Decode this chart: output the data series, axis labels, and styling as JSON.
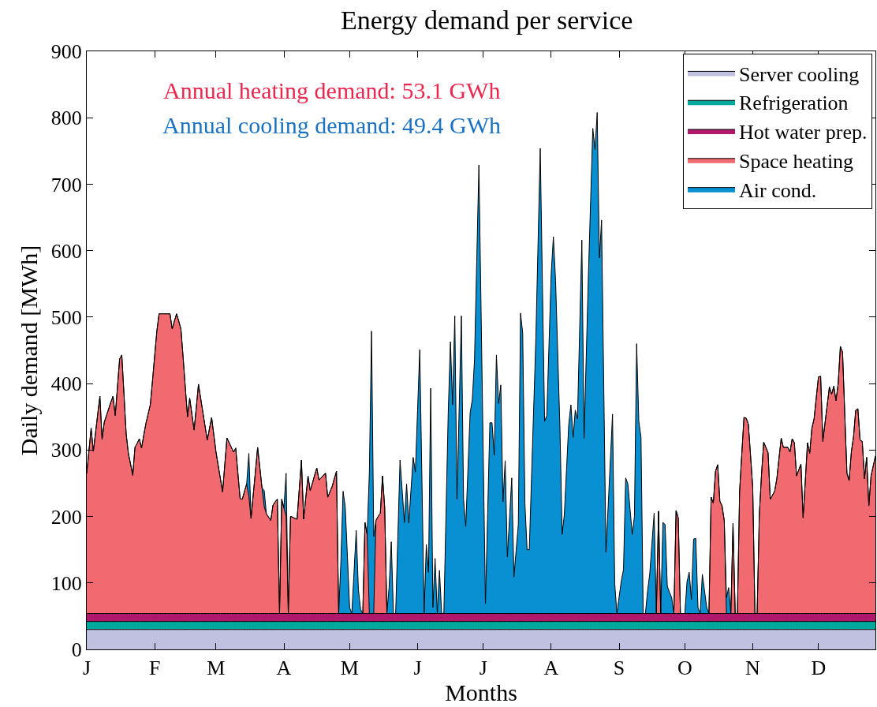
{
  "chart_data": {
    "type": "area",
    "title": "Energy demand per service",
    "xlabel": "Months",
    "ylabel": "Daily demand [MWh]",
    "annotations": [
      "Annual heating demand: 53.1 GWh",
      "Annual cooling demand: 49.4 GWh"
    ],
    "stacked": true,
    "legend": "top right",
    "ylim": [
      0,
      900
    ],
    "yticks": [
      0,
      100,
      200,
      300,
      400,
      500,
      600,
      700,
      800,
      900
    ],
    "categories": [
      "J",
      null,
      null,
      null,
      null,
      null,
      null,
      null,
      null,
      null,
      null,
      null,
      null,
      null,
      null,
      null,
      null,
      null,
      null,
      null,
      null,
      null,
      null,
      null,
      null,
      null,
      null,
      null,
      null,
      null,
      null,
      "F",
      null,
      null,
      null,
      null,
      null,
      null,
      null,
      null,
      null,
      null,
      null,
      null,
      null,
      null,
      null,
      null,
      null,
      null,
      null,
      null,
      null,
      null,
      null,
      null,
      null,
      null,
      null,
      "M",
      null,
      null,
      null,
      null,
      null,
      null,
      null,
      null,
      null,
      null,
      null,
      null,
      null,
      null,
      null,
      null,
      null,
      null,
      null,
      null,
      null,
      null,
      null,
      null,
      null,
      null,
      null,
      null,
      null,
      null,
      "A",
      null,
      null,
      null,
      null,
      null,
      null,
      null,
      null,
      null,
      null,
      null,
      null,
      null,
      null,
      null,
      null,
      null,
      null,
      null,
      null,
      null,
      null,
      null,
      null,
      null,
      null,
      null,
      null,
      null,
      "M",
      null,
      null,
      null,
      null,
      null,
      null,
      null,
      null,
      null,
      null,
      null,
      null,
      null,
      null,
      null,
      null,
      null,
      null,
      null,
      null,
      null,
      null,
      null,
      null,
      null,
      null,
      null,
      null,
      null,
      null,
      "J",
      null,
      null,
      null,
      null,
      null,
      null,
      null,
      null,
      null,
      null,
      null,
      null,
      null,
      null,
      null,
      null,
      null,
      null,
      null,
      null,
      null,
      null,
      null,
      null,
      null,
      null,
      null,
      null,
      null,
      "J",
      null,
      null,
      null,
      null,
      null,
      null,
      null,
      null,
      null,
      null,
      null,
      null,
      null,
      null,
      null,
      null,
      null,
      null,
      null,
      null,
      null,
      null,
      null,
      null,
      null,
      null,
      null,
      null,
      null,
      null,
      "A",
      null,
      null,
      null,
      null,
      null,
      null,
      null,
      null,
      null,
      null,
      null,
      null,
      null,
      null,
      null,
      null,
      null,
      null,
      null,
      null,
      null,
      null,
      null,
      null,
      null,
      null,
      null,
      null,
      null,
      null,
      "S",
      null,
      null,
      null,
      null,
      null,
      null,
      null,
      null,
      null,
      null,
      null,
      null,
      null,
      null,
      null,
      null,
      null,
      null,
      null,
      null,
      null,
      null,
      null,
      null,
      null,
      null,
      null,
      null,
      null,
      "O",
      null,
      null,
      null,
      null,
      null,
      null,
      null,
      null,
      null,
      null,
      null,
      null,
      null,
      null,
      null,
      null,
      null,
      null,
      null,
      null,
      null,
      null,
      null,
      null,
      null,
      null,
      null,
      null,
      null,
      null,
      "N",
      null,
      null,
      null,
      null,
      null,
      null,
      null,
      null,
      null,
      null,
      null,
      null,
      null,
      null,
      null,
      null,
      null,
      null,
      null,
      null,
      null,
      null,
      null,
      null,
      null,
      null,
      null,
      null,
      null,
      "D",
      null,
      null,
      null,
      null,
      null,
      null,
      null,
      null,
      null,
      null,
      null,
      null,
      null,
      null,
      null,
      null,
      null,
      null,
      null,
      null,
      null,
      null,
      null,
      null,
      null,
      null
    ],
    "series": [
      {
        "name": "Server cooling",
        "color": "#c0c0e0",
        "values": [
          30,
          30,
          30,
          30,
          30,
          30,
          30,
          30,
          30,
          30,
          30,
          30,
          30,
          30,
          30,
          30,
          30,
          30,
          30,
          30,
          30,
          30,
          30,
          30,
          30,
          30,
          30,
          30,
          30,
          30,
          30,
          30,
          30,
          30,
          30,
          30,
          30,
          30,
          30,
          30,
          30,
          30,
          30,
          30,
          30,
          30,
          30,
          30,
          30,
          30,
          30,
          30,
          30,
          30,
          30,
          30,
          30,
          30,
          30,
          30,
          30,
          30,
          30,
          30,
          30,
          30,
          30,
          30,
          30,
          30,
          30,
          30,
          30,
          30,
          30,
          30,
          30,
          30,
          30,
          30,
          30,
          30,
          30,
          30,
          30,
          30,
          30,
          30,
          30,
          30,
          30,
          30,
          30,
          30,
          30,
          30,
          30,
          30,
          30,
          30,
          30,
          30,
          30,
          30,
          30,
          30,
          30,
          30,
          30,
          30,
          30,
          30,
          30,
          30,
          30,
          30,
          30,
          30,
          30,
          30,
          30,
          30,
          30,
          30,
          30,
          30,
          30,
          30,
          30,
          30,
          30,
          30,
          30,
          30,
          30,
          30,
          30,
          30,
          30,
          30,
          30,
          30,
          30,
          30,
          30,
          30,
          30,
          30,
          30,
          30,
          30,
          30,
          30,
          30,
          30,
          30,
          30,
          30,
          30,
          30,
          30,
          30,
          30,
          30,
          30,
          30,
          30,
          30,
          30,
          30,
          30,
          30,
          30,
          30,
          30,
          30,
          30,
          30,
          30,
          30,
          30,
          30,
          30,
          30,
          30,
          30,
          30,
          30,
          30,
          30,
          30,
          30,
          30,
          30,
          30,
          30,
          30,
          30,
          30,
          30,
          30,
          30,
          30,
          30,
          30,
          30,
          30,
          30,
          30,
          30,
          30,
          30,
          30,
          30,
          30,
          30,
          30,
          30,
          30,
          30,
          30,
          30,
          30,
          30,
          30,
          30,
          30,
          30,
          30,
          30,
          30,
          30,
          30,
          30,
          30,
          30,
          30,
          30,
          30,
          30,
          30,
          30,
          30,
          30,
          30,
          30,
          30,
          30,
          30,
          30,
          30,
          30,
          30,
          30,
          30,
          30,
          30,
          30,
          30,
          30,
          30,
          30,
          30,
          30,
          30,
          30,
          30,
          30,
          30,
          30,
          30,
          30,
          30,
          30,
          30,
          30,
          30,
          30,
          30,
          30,
          30,
          30,
          30,
          30,
          30,
          30,
          30,
          30,
          30,
          30,
          30,
          30,
          30,
          30,
          30,
          30,
          30,
          30,
          30,
          30,
          30,
          30,
          30,
          30,
          30,
          30,
          30,
          30,
          30,
          30,
          30,
          30,
          30,
          30,
          30,
          30,
          30,
          30,
          30,
          30,
          30,
          30,
          30,
          30,
          30,
          30,
          30,
          30,
          30,
          30,
          30,
          30,
          30,
          30,
          30,
          30,
          30,
          30,
          30,
          30,
          30,
          30,
          30,
          30,
          30,
          30,
          30,
          30,
          30,
          30,
          30,
          30,
          30,
          30,
          30,
          30,
          30,
          30,
          30,
          30,
          30
        ]
      },
      {
        "name": "Refrigeration",
        "color": "#00a99d",
        "values": [
          12,
          12,
          12,
          12,
          12,
          12,
          12,
          12,
          12,
          12,
          12,
          12,
          12,
          12,
          12,
          12,
          12,
          12,
          12,
          12,
          12,
          12,
          12,
          12,
          12,
          12,
          12,
          12,
          12,
          12,
          12,
          12,
          12,
          12,
          12,
          12,
          12,
          12,
          12,
          12,
          12,
          12,
          12,
          12,
          12,
          12,
          12,
          12,
          12,
          12,
          12,
          12,
          12,
          12,
          12,
          12,
          12,
          12,
          12,
          12,
          12,
          12,
          12,
          12,
          12,
          12,
          12,
          12,
          12,
          12,
          12,
          12,
          12,
          12,
          12,
          12,
          12,
          12,
          12,
          12,
          12,
          12,
          12,
          12,
          12,
          12,
          12,
          12,
          12,
          12,
          12,
          12,
          12,
          12,
          12,
          12,
          12,
          12,
          12,
          12,
          12,
          12,
          12,
          12,
          12,
          12,
          12,
          12,
          12,
          12,
          12,
          12,
          12,
          12,
          12,
          12,
          12,
          12,
          12,
          12,
          12,
          12,
          12,
          12,
          12,
          12,
          12,
          12,
          12,
          12,
          12,
          12,
          12,
          12,
          12,
          12,
          12,
          12,
          12,
          12,
          12,
          12,
          12,
          12,
          12,
          12,
          12,
          12,
          12,
          12,
          12,
          12,
          12,
          12,
          12,
          12,
          12,
          12,
          12,
          12,
          12,
          12,
          12,
          12,
          12,
          12,
          12,
          12,
          12,
          12,
          12,
          12,
          12,
          12,
          12,
          12,
          12,
          12,
          12,
          12,
          12,
          12,
          12,
          12,
          12,
          12,
          12,
          12,
          12,
          12,
          12,
          12,
          12,
          12,
          12,
          12,
          12,
          12,
          12,
          12,
          12,
          12,
          12,
          12,
          12,
          12,
          12,
          12,
          12,
          12,
          12,
          12,
          12,
          12,
          12,
          12,
          12,
          12,
          12,
          12,
          12,
          12,
          12,
          12,
          12,
          12,
          12,
          12,
          12,
          12,
          12,
          12,
          12,
          12,
          12,
          12,
          12,
          12,
          12,
          12,
          12,
          12,
          12,
          12,
          12,
          12,
          12,
          12,
          12,
          12,
          12,
          12,
          12,
          12,
          12,
          12,
          12,
          12,
          12,
          12,
          12,
          12,
          12,
          12,
          12,
          12,
          12,
          12,
          12,
          12,
          12,
          12,
          12,
          12,
          12,
          12,
          12,
          12,
          12,
          12,
          12,
          12,
          12,
          12,
          12,
          12,
          12,
          12,
          12,
          12,
          12,
          12,
          12,
          12,
          12,
          12,
          12,
          12,
          12,
          12,
          12,
          12,
          12,
          12,
          12,
          12,
          12,
          12,
          12,
          12,
          12,
          12,
          12,
          12,
          12,
          12,
          12,
          12,
          12,
          12,
          12,
          12,
          12,
          12,
          12,
          12,
          12,
          12,
          12,
          12,
          12,
          12,
          12,
          12,
          12,
          12,
          12,
          12,
          12,
          12,
          12,
          12,
          12,
          12,
          12,
          12,
          12,
          12,
          12,
          12,
          12,
          12,
          12,
          12,
          12,
          12,
          12,
          12,
          12,
          12,
          12
        ]
      },
      {
        "name": "Hot water prep.",
        "color": "#b0186c",
        "values": [
          12,
          12,
          12,
          12,
          12,
          12,
          12,
          12,
          12,
          12,
          12,
          12,
          12,
          12,
          12,
          12,
          12,
          12,
          12,
          12,
          12,
          12,
          12,
          12,
          12,
          12,
          12,
          12,
          12,
          12,
          12,
          12,
          12,
          12,
          12,
          12,
          12,
          12,
          12,
          12,
          12,
          12,
          12,
          12,
          12,
          12,
          12,
          12,
          12,
          12,
          12,
          12,
          12,
          12,
          12,
          12,
          12,
          12,
          12,
          12,
          12,
          12,
          12,
          12,
          12,
          12,
          12,
          12,
          12,
          12,
          12,
          12,
          12,
          12,
          12,
          12,
          12,
          12,
          12,
          12,
          12,
          12,
          12,
          12,
          12,
          12,
          12,
          12,
          12,
          12,
          12,
          12,
          12,
          12,
          12,
          12,
          12,
          12,
          12,
          12,
          12,
          12,
          12,
          12,
          12,
          12,
          12,
          12,
          12,
          12,
          12,
          12,
          12,
          12,
          12,
          12,
          12,
          12,
          12,
          12,
          12,
          12,
          12,
          12,
          12,
          12,
          12,
          12,
          12,
          12,
          12,
          12,
          12,
          12,
          12,
          12,
          12,
          12,
          12,
          12,
          12,
          12,
          12,
          12,
          12,
          12,
          12,
          12,
          12,
          12,
          12,
          12,
          12,
          12,
          12,
          12,
          12,
          12,
          12,
          12,
          12,
          12,
          12,
          12,
          12,
          12,
          12,
          12,
          12,
          12,
          12,
          12,
          12,
          12,
          12,
          12,
          12,
          12,
          12,
          12,
          12,
          12,
          12,
          12,
          12,
          12,
          12,
          12,
          12,
          12,
          12,
          12,
          12,
          12,
          12,
          12,
          12,
          12,
          12,
          12,
          12,
          12,
          12,
          12,
          12,
          12,
          12,
          12,
          12,
          12,
          12,
          12,
          12,
          12,
          12,
          12,
          12,
          12,
          12,
          12,
          12,
          12,
          12,
          12,
          12,
          12,
          12,
          12,
          12,
          12,
          12,
          12,
          12,
          12,
          12,
          12,
          12,
          12,
          12,
          12,
          12,
          12,
          12,
          12,
          12,
          12,
          12,
          12,
          12,
          12,
          12,
          12,
          12,
          12,
          12,
          12,
          12,
          12,
          12,
          12,
          12,
          12,
          12,
          12,
          12,
          12,
          12,
          12,
          12,
          12,
          12,
          12,
          12,
          12,
          12,
          12,
          12,
          12,
          12,
          12,
          12,
          12,
          12,
          12,
          12,
          12,
          12,
          12,
          12,
          12,
          12,
          12,
          12,
          12,
          12,
          12,
          12,
          12,
          12,
          12,
          12,
          12,
          12,
          12,
          12,
          12,
          12,
          12,
          12,
          12,
          12,
          12,
          12,
          12,
          12,
          12,
          12,
          12,
          12,
          12,
          12,
          12,
          12,
          12,
          12,
          12,
          12,
          12,
          12,
          12,
          12,
          12,
          12,
          12,
          12,
          12,
          12,
          12,
          12,
          12,
          12,
          12,
          12,
          12,
          12,
          12,
          12,
          12,
          12,
          12,
          12,
          12,
          12,
          12,
          12,
          12,
          12,
          12,
          12,
          12,
          12
        ]
      },
      {
        "name": "Space heating",
        "color": "#f06a70",
        "values": [
          211,
          245,
          279,
          244,
          272,
          300,
          327,
          262,
          288,
          298,
          308,
          318,
          327,
          298,
          340,
          383,
          389,
          330,
          270,
          241,
          225,
          208,
          250,
          256,
          263,
          249,
          268,
          286,
          300,
          314,
          350,
          388,
          425,
          451,
          451,
          451,
          451,
          451,
          451,
          428,
          440,
          451,
          440,
          428,
          385,
          340,
          296,
          324,
          300,
          276,
          310,
          345,
          324,
          303,
          282,
          261,
          278,
          295,
          269,
          243,
          223,
          203,
          183,
          224,
          264,
          257,
          250,
          243,
          249,
          211,
          173,
          172,
          184,
          195,
          176,
          143,
          179,
          214,
          250,
          220,
          189,
          161,
          150,
          145,
          140,
          163,
          168,
          172,
          0,
          172,
          159,
          146,
          0,
          146,
          145,
          143,
          142,
          187,
          231,
          142,
          175,
          207,
          185,
          196,
          208,
          219,
          201,
          204,
          208,
          211,
          175,
          183,
          191,
          203,
          214,
          0,
          0,
          0,
          0,
          0,
          0,
          0,
          0,
          0,
          0,
          0,
          0,
          137,
          119,
          0,
          0,
          0,
          140,
          146,
          151,
          207,
          160,
          0,
          0,
          0,
          0,
          0,
          0,
          0,
          0,
          0,
          0,
          0,
          0,
          0,
          0,
          0,
          0,
          0,
          0,
          0,
          0,
          0,
          0,
          0,
          0,
          0,
          0,
          0,
          0,
          0,
          0,
          0,
          0,
          0,
          0,
          0,
          0,
          0,
          0,
          0,
          0,
          0,
          0,
          0,
          0,
          0,
          0,
          0,
          0,
          0,
          0,
          0,
          0,
          0,
          0,
          0,
          0,
          0,
          0,
          0,
          0,
          0,
          0,
          0,
          0,
          0,
          0,
          0,
          0,
          0,
          0,
          0,
          0,
          0,
          0,
          0,
          0,
          0,
          0,
          0,
          0,
          0,
          0,
          0,
          0,
          0,
          0,
          0,
          0,
          0,
          0,
          0,
          0,
          0,
          0,
          0,
          0,
          0,
          0,
          0,
          0,
          0,
          0,
          0,
          0,
          0,
          0,
          0,
          0,
          0,
          0,
          0,
          0,
          0,
          0,
          0,
          0,
          0,
          0,
          0,
          0,
          0,
          0,
          0,
          0,
          154,
          0,
          0,
          0,
          0,
          0,
          0,
          0,
          155,
          144,
          0,
          0,
          0,
          0,
          0,
          0,
          0,
          0,
          0,
          0,
          0,
          0,
          0,
          0,
          175,
          166,
          214,
          224,
          169,
          162,
          140,
          0,
          0,
          0,
          136,
          0,
          0,
          184,
          240,
          295,
          294,
          285,
          238,
          190,
          0,
          0,
          148,
          209,
          258,
          250,
          242,
          172,
          178,
          184,
          203,
          234,
          264,
          250,
          250,
          250,
          243,
          263,
          257,
          207,
          216,
          225,
          144,
          200,
          257,
          241,
          279,
          293,
          325,
          356,
          357,
          259,
          287,
          314,
          341,
          330,
          342,
          320,
          346,
          402,
          393,
          302,
          211,
          200,
          243,
          266,
          306,
          308,
          261,
          259,
          203,
          235,
          162,
          207,
          222,
          237
        ]
      },
      {
        "name": "Air cond.",
        "color": "#0890d3",
        "values": [
          0,
          0,
          0,
          0,
          0,
          0,
          0,
          0,
          0,
          0,
          0,
          0,
          0,
          0,
          0,
          0,
          0,
          0,
          0,
          0,
          0,
          0,
          0,
          0,
          0,
          0,
          0,
          0,
          0,
          0,
          0,
          0,
          0,
          0,
          0,
          0,
          0,
          0,
          0,
          0,
          0,
          0,
          0,
          0,
          0,
          0,
          0,
          0,
          0,
          0,
          0,
          0,
          0,
          0,
          0,
          0,
          0,
          0,
          0,
          0,
          0,
          0,
          0,
          0,
          0,
          0,
          0,
          0,
          0,
          0,
          0,
          0,
          0,
          0,
          65,
          0,
          0,
          0,
          0,
          0,
          0,
          24,
          0,
          0,
          0,
          0,
          0,
          0,
          0,
          0,
          0,
          65,
          0,
          0,
          0,
          0,
          0,
          0,
          0,
          0,
          0,
          0,
          0,
          0,
          0,
          0,
          0,
          0,
          0,
          0,
          0,
          0,
          0,
          0,
          0,
          0,
          78,
          184,
          160,
          85,
          9,
          0,
          62,
          125,
          36,
          6,
          0,
          0,
          0,
          212,
          425,
          116,
          0,
          0,
          0,
          0,
          0,
          0,
          39,
          108,
          0,
          0,
          115,
          231,
          184,
          137,
          195,
          136,
          186,
          235,
          213,
          305,
          397,
          200,
          0,
          104,
          62,
          339,
          9,
          83,
          0,
          65,
          0,
          0,
          151,
          302,
          409,
          314,
          448,
          172,
          310,
          448,
          172,
          131,
          217,
          302,
          322,
          382,
          528,
          675,
          455,
          235,
          15,
          151,
          287,
          287,
          238,
          389,
          316,
          344,
          168,
          230,
          85,
          145,
          204,
          55,
          95,
          134,
          452,
          422,
          166,
          96,
          96,
          202,
          308,
          414,
          557,
          700,
          495,
          289,
          298,
          405,
          511,
          567,
          501,
          390,
          279,
          119,
          149,
          217,
          284,
          314,
          265,
          306,
          293,
          428,
          562,
          263,
          387,
          511,
          621,
          730,
          698,
          754,
          535,
          592,
          342,
          92,
          161,
          230,
          300,
          45,
          0,
          25,
          49,
          66,
          204,
          195,
          157,
          119,
          146,
          406,
          289,
          265,
          0,
          0,
          34,
          60,
          106,
          151,
          0,
          0,
          0,
          137,
          134,
          41,
          32,
          24,
          0,
          0,
          0,
          0,
          0,
          0,
          48,
          62,
          21,
          112,
          113,
          9,
          0,
          59,
          34,
          9,
          0,
          0,
          0,
          0,
          0,
          0,
          0,
          0,
          24,
          39,
          0,
          0,
          0,
          0,
          0,
          0,
          0,
          0,
          0,
          0,
          0,
          0,
          0,
          0,
          0,
          0,
          0,
          0,
          0,
          0,
          0,
          0,
          0,
          0,
          0,
          0,
          0,
          0,
          0,
          0,
          0,
          0,
          0,
          0,
          0,
          0,
          0,
          0,
          0,
          0,
          0,
          0,
          0,
          0,
          0,
          0,
          0,
          0,
          0,
          0,
          0,
          0,
          0,
          0,
          0,
          0,
          0,
          0,
          0,
          0,
          0,
          0,
          0,
          0,
          0,
          0,
          0
        ]
      }
    ]
  }
}
